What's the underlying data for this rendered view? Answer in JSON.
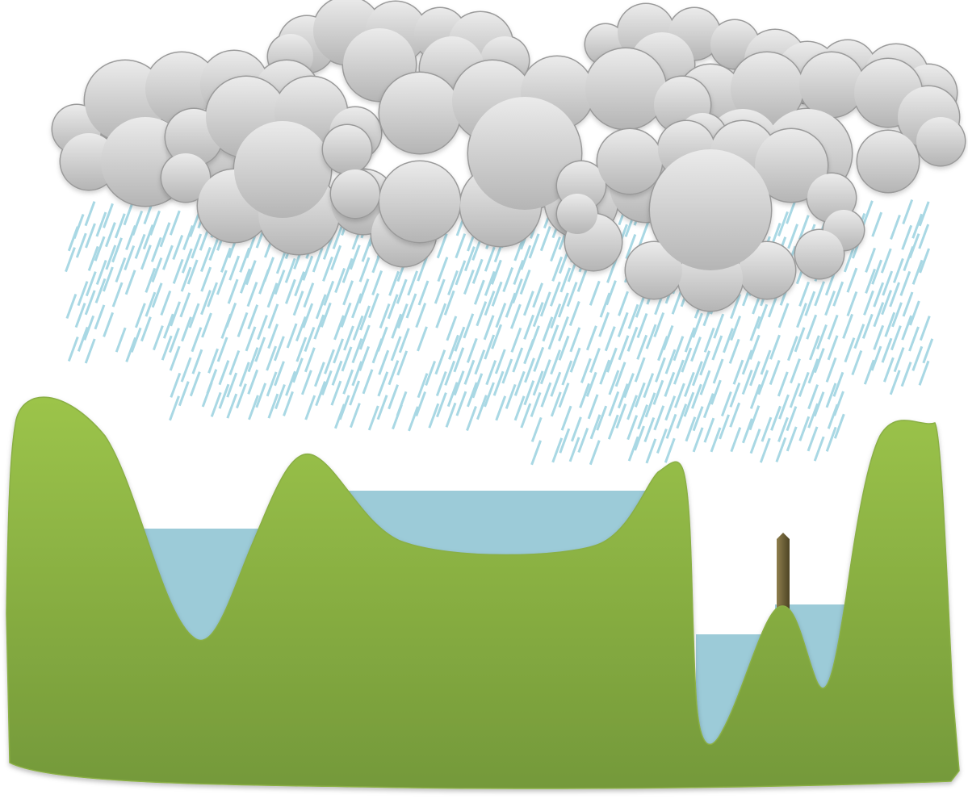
{
  "scene": {
    "description_text": "",
    "clouds": [
      {
        "name": "cloud-top-left-back"
      },
      {
        "name": "cloud-top-center-back"
      },
      {
        "name": "cloud-top-right-back"
      },
      {
        "name": "cloud-left"
      },
      {
        "name": "cloud-center"
      },
      {
        "name": "cloud-right"
      },
      {
        "name": "cloud-front"
      }
    ],
    "lakes": [
      {
        "name": "lake-left"
      },
      {
        "name": "lake-center"
      },
      {
        "name": "lake-right-low"
      },
      {
        "name": "lake-right-high"
      }
    ],
    "post": {
      "name": "measuring-post"
    }
  },
  "colors": {
    "sky": "#ffffff",
    "cloud_light": "#ebebeb",
    "cloud_dark": "#b5b5b5",
    "cloud_edge": "#9a9a9a",
    "rain": "#a9d8e4",
    "water": "#9ccbd8",
    "hill_light": "#9cc44a",
    "hill_dark": "#74993a",
    "post_light": "#8f7f4d",
    "post_dark": "#4e4424"
  }
}
